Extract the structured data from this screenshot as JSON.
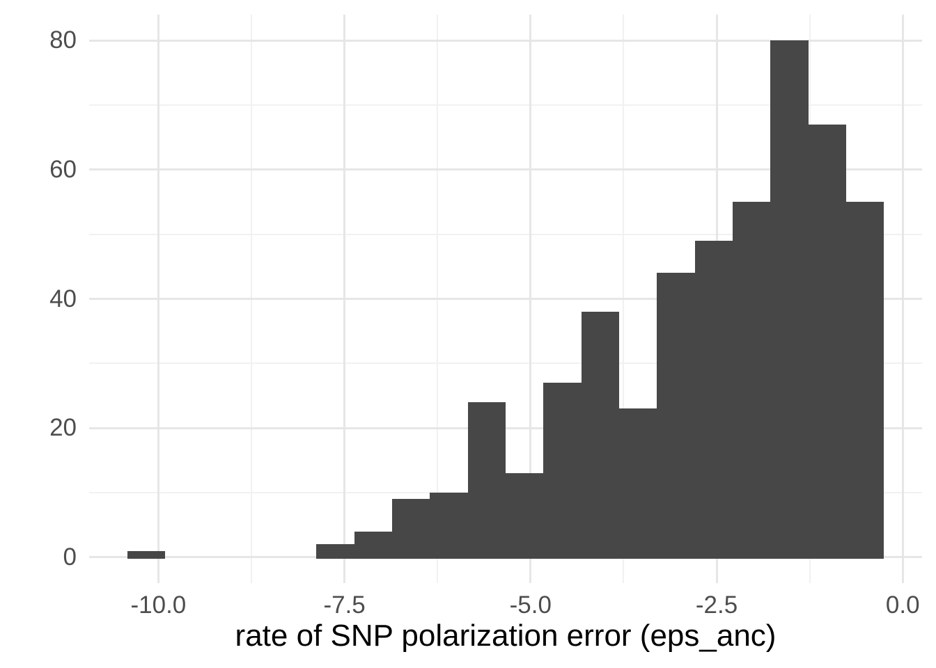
{
  "chart_data": {
    "type": "bar",
    "subtype": "histogram",
    "title": "",
    "xlabel": "rate of SNP polarization error (eps_anc)",
    "ylabel": "",
    "legend": "none",
    "grid": "on",
    "bin_start": -10.42,
    "bin_width": 0.5085,
    "counts": [
      1,
      0,
      0,
      0,
      0,
      2,
      4,
      9,
      10,
      24,
      13,
      27,
      38,
      23,
      44,
      49,
      55,
      80,
      67,
      55
    ],
    "x_axis": {
      "range": [
        -10.93,
        0.26
      ],
      "major_ticks": [
        -10.0,
        -7.5,
        -5.0,
        -2.5,
        0.0
      ],
      "major_tick_labels": [
        "-10.0",
        "-7.5",
        "-5.0",
        "-2.5",
        "0.0"
      ],
      "minor_ticks": [
        -8.75,
        -6.25,
        -3.75,
        -1.25
      ]
    },
    "y_axis": {
      "range": [
        -4,
        84
      ],
      "major_ticks": [
        0,
        20,
        40,
        60,
        80
      ],
      "major_tick_labels": [
        "0",
        "20",
        "40",
        "60",
        "80"
      ],
      "minor_ticks": [
        10,
        30,
        50,
        70
      ]
    },
    "colors": {
      "bar_fill": "#474747",
      "background": "#ffffff",
      "grid_major": "#e6e6e6",
      "grid_minor": "#f1f1f1",
      "tick_label": "#4d4d4d",
      "axis_title": "#000000"
    }
  }
}
